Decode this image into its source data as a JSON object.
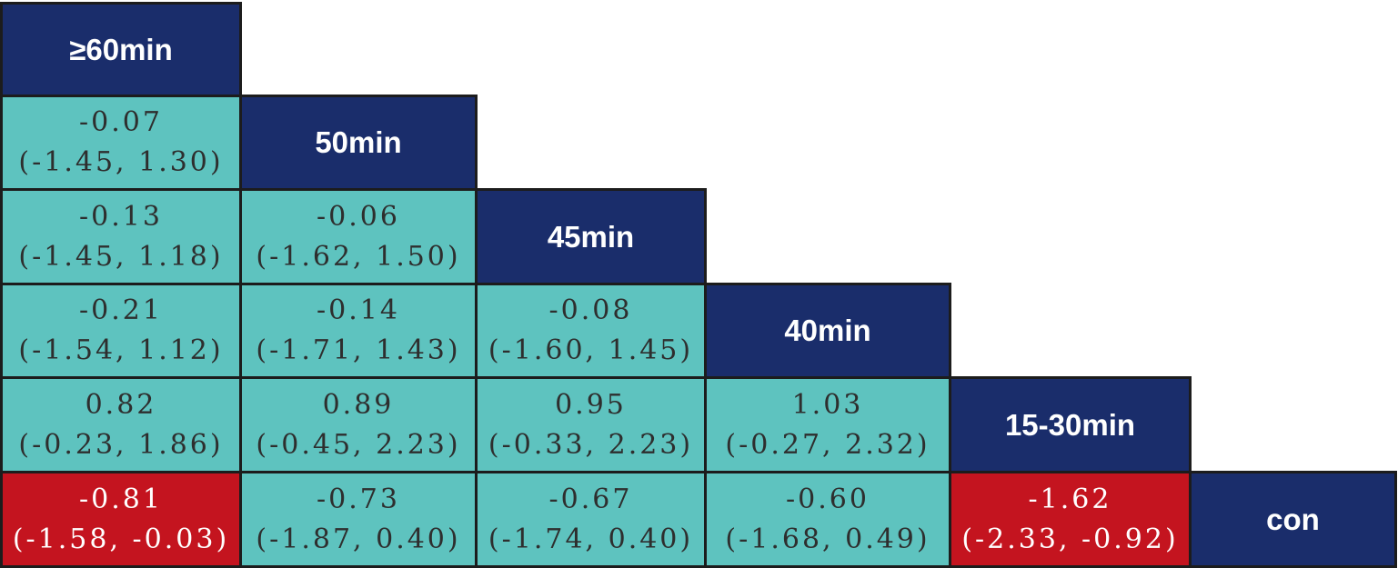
{
  "colors": {
    "header": "#1a2d6b",
    "nonsignificant": "#5ec3bf",
    "significant": "#c4141f",
    "border": "#1c1c1c"
  },
  "treatments": [
    "≥60min",
    "50min",
    "45min",
    "40min",
    "15-30min",
    "con"
  ],
  "comparisons": [
    {
      "row": 1,
      "col": 0,
      "estimate": "-0.07",
      "ci": "(-1.45, 1.30)",
      "significant": false
    },
    {
      "row": 2,
      "col": 0,
      "estimate": "-0.13",
      "ci": "(-1.45, 1.18)",
      "significant": false
    },
    {
      "row": 2,
      "col": 1,
      "estimate": "-0.06",
      "ci": "(-1.62, 1.50)",
      "significant": false
    },
    {
      "row": 3,
      "col": 0,
      "estimate": "-0.21",
      "ci": "(-1.54, 1.12)",
      "significant": false
    },
    {
      "row": 3,
      "col": 1,
      "estimate": "-0.14",
      "ci": "(-1.71, 1.43)",
      "significant": false
    },
    {
      "row": 3,
      "col": 2,
      "estimate": "-0.08",
      "ci": "(-1.60, 1.45)",
      "significant": false
    },
    {
      "row": 4,
      "col": 0,
      "estimate": "0.82",
      "ci": "(-0.23, 1.86)",
      "significant": false
    },
    {
      "row": 4,
      "col": 1,
      "estimate": "0.89",
      "ci": "(-0.45, 2.23)",
      "significant": false
    },
    {
      "row": 4,
      "col": 2,
      "estimate": "0.95",
      "ci": "(-0.33, 2.23)",
      "significant": false
    },
    {
      "row": 4,
      "col": 3,
      "estimate": "1.03",
      "ci": "(-0.27, 2.32)",
      "significant": false
    },
    {
      "row": 5,
      "col": 0,
      "estimate": "-0.81",
      "ci": "(-1.58, -0.03)",
      "significant": true
    },
    {
      "row": 5,
      "col": 1,
      "estimate": "-0.73",
      "ci": "(-1.87, 0.40)",
      "significant": false
    },
    {
      "row": 5,
      "col": 2,
      "estimate": "-0.67",
      "ci": "(-1.74, 0.40)",
      "significant": false
    },
    {
      "row": 5,
      "col": 3,
      "estimate": "-0.60",
      "ci": "(-1.68, 0.49)",
      "significant": false
    },
    {
      "row": 5,
      "col": 4,
      "estimate": "-1.62",
      "ci": "(-2.33, -0.92)",
      "significant": true
    }
  ]
}
